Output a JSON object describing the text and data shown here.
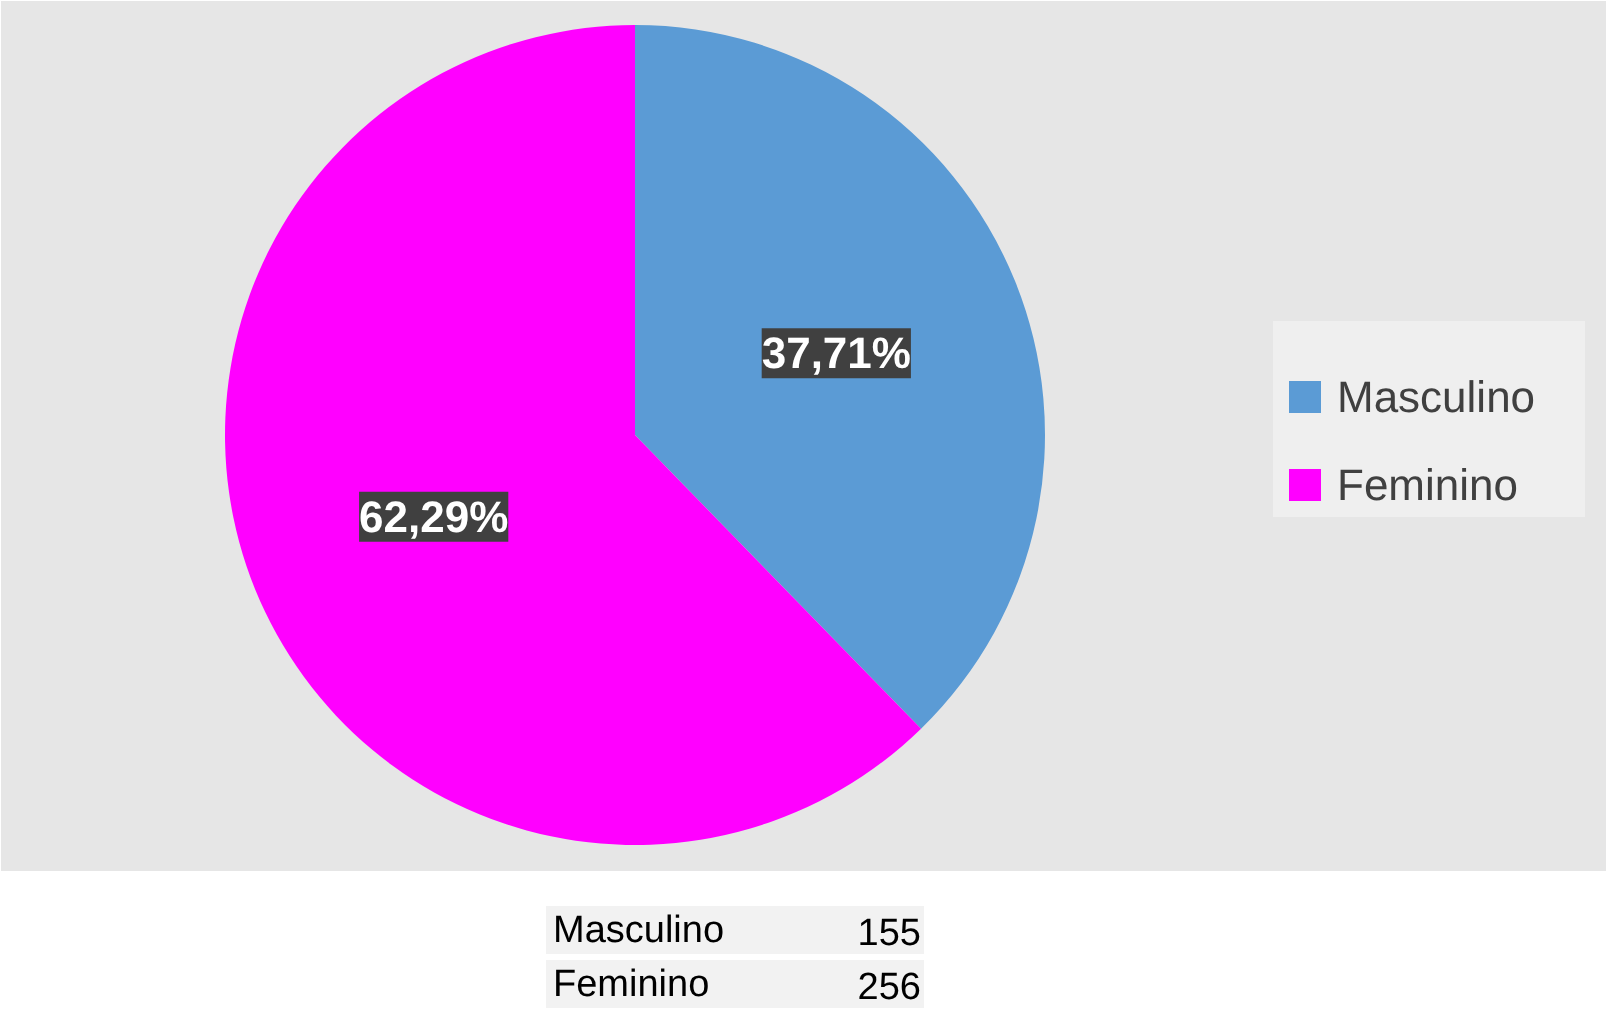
{
  "chart_data": {
    "type": "pie",
    "categories": [
      "Masculino",
      "Feminino"
    ],
    "values": [
      37.71,
      62.29
    ],
    "colors": [
      "#5b9bd5",
      "#ff00ff"
    ],
    "value_labels": [
      "37,71%",
      "62,29%"
    ],
    "annotations": [
      "155",
      "256"
    ],
    "legend": "right"
  }
}
